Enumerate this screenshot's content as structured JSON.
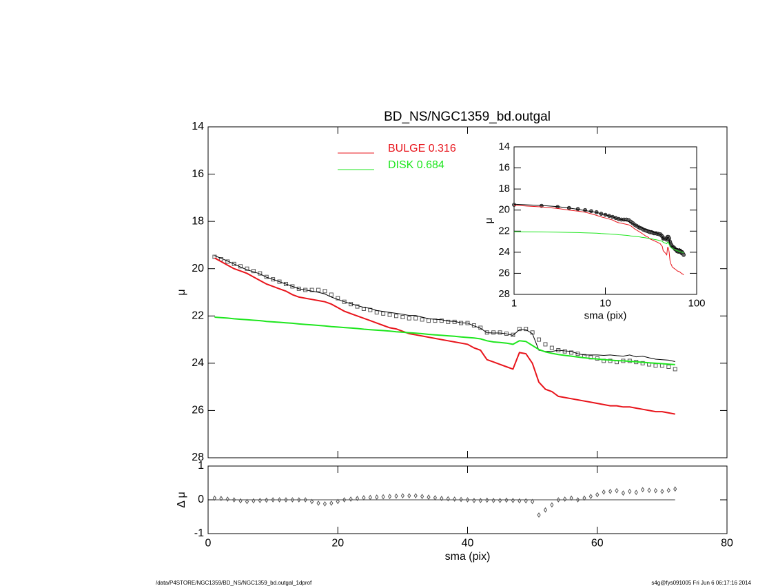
{
  "chart_data": [
    {
      "type": "line",
      "title": "BD_NS/NGC1359_bd.outgal",
      "ylabel": "μ",
      "xlim": [
        0,
        80
      ],
      "xticks": [
        0,
        20,
        40,
        60,
        80
      ],
      "show_xtick_labels": false,
      "ylim": [
        28,
        14
      ],
      "yticks": [
        14,
        16,
        18,
        20,
        22,
        24,
        26,
        28
      ],
      "x": [
        1,
        2,
        3,
        4,
        5,
        6,
        7,
        8,
        9,
        10,
        11,
        12,
        13,
        14,
        15,
        16,
        17,
        18,
        19,
        20,
        21,
        22,
        23,
        24,
        25,
        26,
        27,
        28,
        29,
        30,
        31,
        32,
        33,
        34,
        35,
        36,
        37,
        38,
        39,
        40,
        41,
        42,
        43,
        44,
        45,
        46,
        47,
        48,
        49,
        50,
        51,
        52,
        53,
        54,
        55,
        56,
        57,
        58,
        59,
        60,
        61,
        62,
        63,
        64,
        65,
        66,
        67,
        68,
        69,
        70,
        71,
        72
      ],
      "series": [
        {
          "color": "#555555",
          "marker": "square",
          "values": [
            19.5,
            19.6,
            19.7,
            19.8,
            19.9,
            20.0,
            20.1,
            20.2,
            20.35,
            20.45,
            20.55,
            20.65,
            20.75,
            20.85,
            20.9,
            20.9,
            20.9,
            20.95,
            21.1,
            21.25,
            21.4,
            21.5,
            21.6,
            21.7,
            21.75,
            21.85,
            21.9,
            21.95,
            22.0,
            22.05,
            22.1,
            22.1,
            22.15,
            22.2,
            22.2,
            22.2,
            22.25,
            22.25,
            22.3,
            22.3,
            22.4,
            22.5,
            22.7,
            22.7,
            22.7,
            22.75,
            22.8,
            22.55,
            22.55,
            22.7,
            23.0,
            23.2,
            23.35,
            23.45,
            23.5,
            23.55,
            23.6,
            23.7,
            23.75,
            23.8,
            23.9,
            23.9,
            23.95,
            23.9,
            23.9,
            23.95,
            24.0,
            24.05,
            24.1,
            24.1,
            24.15,
            24.25
          ]
        },
        {
          "color": "#000000",
          "values": [
            19.45,
            19.56,
            19.68,
            19.8,
            19.93,
            20.05,
            20.13,
            20.22,
            20.36,
            20.45,
            20.55,
            20.65,
            20.75,
            20.85,
            20.9,
            20.95,
            21.0,
            21.07,
            21.2,
            21.3,
            21.4,
            21.48,
            21.56,
            21.64,
            21.68,
            21.77,
            21.81,
            21.85,
            21.89,
            21.93,
            21.98,
            21.98,
            22.05,
            22.12,
            22.14,
            22.16,
            22.22,
            22.23,
            22.29,
            22.3,
            22.42,
            22.52,
            22.71,
            22.72,
            22.72,
            22.76,
            22.82,
            22.58,
            22.58,
            22.75,
            23.45,
            23.5,
            23.5,
            23.45,
            23.48,
            23.5,
            23.6,
            23.65,
            23.65,
            23.65,
            23.67,
            23.65,
            23.68,
            23.7,
            23.65,
            23.73,
            23.7,
            23.77,
            23.83,
            23.85,
            23.87,
            23.93
          ]
        },
        {
          "name": "BULGE  0.316",
          "color": "#e8141b",
          "values": [
            19.55,
            19.7,
            19.85,
            20.0,
            20.1,
            20.2,
            20.35,
            20.5,
            20.65,
            20.75,
            20.85,
            20.95,
            21.1,
            21.2,
            21.25,
            21.3,
            21.35,
            21.4,
            21.5,
            21.65,
            21.8,
            21.9,
            22.0,
            22.1,
            22.2,
            22.3,
            22.4,
            22.5,
            22.55,
            22.65,
            22.75,
            22.8,
            22.85,
            22.9,
            22.95,
            23.0,
            23.05,
            23.1,
            23.15,
            23.2,
            23.35,
            23.45,
            23.85,
            23.95,
            24.05,
            24.15,
            24.25,
            23.55,
            23.6,
            24.0,
            24.8,
            25.1,
            25.2,
            25.4,
            25.45,
            25.5,
            25.55,
            25.6,
            25.65,
            25.7,
            25.75,
            25.8,
            25.8,
            25.85,
            25.85,
            25.9,
            25.95,
            26.0,
            26.05,
            26.05,
            26.1,
            26.15
          ]
        },
        {
          "name": "DISK  0.684",
          "color": "#1ee61e",
          "values": [
            22.05,
            22.07,
            22.09,
            22.12,
            22.14,
            22.16,
            22.18,
            22.2,
            22.23,
            22.25,
            22.27,
            22.29,
            22.31,
            22.34,
            22.36,
            22.38,
            22.4,
            22.42,
            22.45,
            22.47,
            22.49,
            22.51,
            22.53,
            22.56,
            22.58,
            22.6,
            22.62,
            22.64,
            22.67,
            22.69,
            22.71,
            22.73,
            22.75,
            22.78,
            22.8,
            22.82,
            22.84,
            22.86,
            22.89,
            22.91,
            22.93,
            22.97,
            23.05,
            23.1,
            23.12,
            23.15,
            23.2,
            23.05,
            23.08,
            23.25,
            23.42,
            23.52,
            23.58,
            23.63,
            23.67,
            23.7,
            23.74,
            23.77,
            23.8,
            23.82,
            23.85,
            23.87,
            23.89,
            23.9,
            23.92,
            23.94,
            23.96,
            23.98,
            24.0,
            24.02,
            24.04,
            24.06
          ]
        }
      ]
    },
    {
      "type": "scatter",
      "ylabel": "Δ μ",
      "xlabel": "sma (pix)",
      "xlim": [
        0,
        80
      ],
      "xticks": [
        0,
        20,
        40,
        60,
        80
      ],
      "ylim": [
        -1,
        1
      ],
      "yticks": [
        -1,
        0,
        1
      ],
      "hline": 0,
      "series": [
        {
          "color": "#555555",
          "values": [
            0.05,
            0.04,
            0.02,
            0.0,
            -0.03,
            -0.05,
            -0.03,
            -0.02,
            -0.01,
            0,
            0,
            0,
            0,
            0,
            0,
            -0.05,
            -0.1,
            -0.12,
            -0.1,
            -0.05,
            0,
            0.02,
            0.04,
            0.06,
            0.07,
            0.08,
            0.09,
            0.1,
            0.11,
            0.12,
            0.12,
            0.12,
            0.1,
            0.08,
            0.06,
            0.04,
            0.03,
            0.02,
            0.01,
            0,
            -0.02,
            -0.02,
            -0.01,
            -0.02,
            -0.02,
            -0.01,
            -0.02,
            -0.03,
            -0.03,
            -0.05,
            -0.45,
            -0.3,
            -0.15,
            0,
            0.02,
            0.05,
            0,
            0.05,
            0.1,
            0.15,
            0.23,
            0.25,
            0.27,
            0.2,
            0.25,
            0.22,
            0.3,
            0.28,
            0.27,
            0.25,
            0.28,
            0.32
          ]
        }
      ]
    },
    {
      "type": "line",
      "xlabel": "sma (pix)",
      "ylabel": "μ",
      "log_x": true,
      "xlim": [
        1,
        100
      ],
      "xticks": [
        1,
        10,
        100
      ],
      "ylim": [
        28,
        14
      ],
      "yticks": [
        14,
        16,
        18,
        20,
        22,
        24,
        26,
        28
      ]
    }
  ],
  "footer": {
    "left": "/data/P4STORE/NGC1359/BD_NS/NGC1359_bd.outgal_1dprof",
    "right": "s4g@fys091005  Fri Jun  6 06:17:16 2014"
  }
}
